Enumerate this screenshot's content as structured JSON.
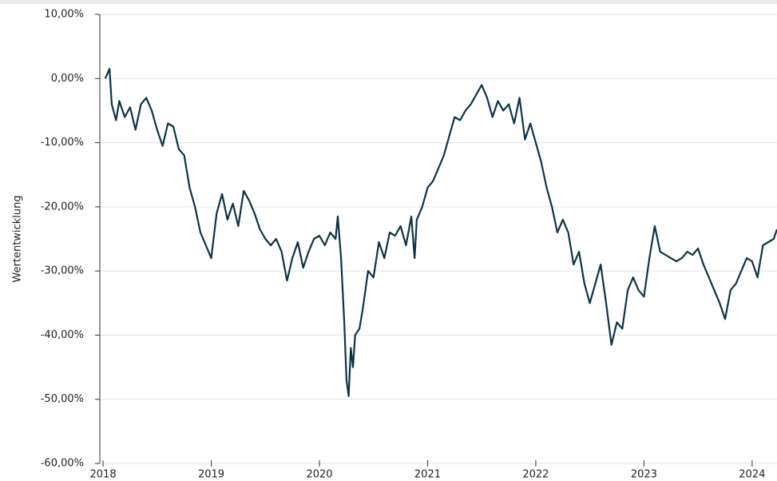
{
  "chart_data": {
    "type": "line",
    "y_label": "Wertentwicklung",
    "xlim": [
      2017.97,
      2024.23
    ],
    "xticks": [
      2018,
      2019,
      2020,
      2021,
      2022,
      2023,
      2024
    ],
    "ylim": [
      -60,
      10
    ],
    "yticks": [
      {
        "value": 10,
        "label": "10,00%"
      },
      {
        "value": 0,
        "label": "0,00%"
      },
      {
        "value": -10,
        "label": "-10,00%"
      },
      {
        "value": -20,
        "label": "-20,00%"
      },
      {
        "value": -30,
        "label": "-30,00%"
      },
      {
        "value": -40,
        "label": "-40,00%"
      },
      {
        "value": -50,
        "label": "-50,00%"
      },
      {
        "value": -60,
        "label": "-60,00%"
      }
    ],
    "grid": true,
    "series": [
      {
        "color": "#0d3344",
        "x": [
          2018.02,
          2018.06,
          2018.08,
          2018.12,
          2018.15,
          2018.2,
          2018.25,
          2018.3,
          2018.35,
          2018.4,
          2018.45,
          2018.5,
          2018.55,
          2018.6,
          2018.65,
          2018.7,
          2018.75,
          2018.8,
          2018.85,
          2018.9,
          2018.95,
          2019.0,
          2019.05,
          2019.1,
          2019.15,
          2019.2,
          2019.25,
          2019.3,
          2019.35,
          2019.4,
          2019.45,
          2019.5,
          2019.55,
          2019.6,
          2019.65,
          2019.7,
          2019.75,
          2019.8,
          2019.85,
          2019.9,
          2019.95,
          2020.0,
          2020.05,
          2020.1,
          2020.15,
          2020.17,
          2020.2,
          2020.23,
          2020.25,
          2020.27,
          2020.29,
          2020.31,
          2020.33,
          2020.37,
          2020.4,
          2020.45,
          2020.5,
          2020.55,
          2020.6,
          2020.65,
          2020.7,
          2020.75,
          2020.8,
          2020.85,
          2020.88,
          2020.9,
          2020.95,
          2021.0,
          2021.05,
          2021.1,
          2021.15,
          2021.2,
          2021.25,
          2021.3,
          2021.35,
          2021.4,
          2021.45,
          2021.5,
          2021.55,
          2021.6,
          2021.65,
          2021.7,
          2021.75,
          2021.8,
          2021.85,
          2021.9,
          2021.95,
          2022.0,
          2022.05,
          2022.1,
          2022.15,
          2022.2,
          2022.25,
          2022.3,
          2022.35,
          2022.4,
          2022.45,
          2022.5,
          2022.55,
          2022.6,
          2022.65,
          2022.7,
          2022.75,
          2022.8,
          2022.85,
          2022.9,
          2022.95,
          2023.0,
          2023.05,
          2023.1,
          2023.15,
          2023.2,
          2023.25,
          2023.3,
          2023.35,
          2023.4,
          2023.45,
          2023.5,
          2023.55,
          2023.6,
          2023.65,
          2023.7,
          2023.75,
          2023.8,
          2023.85,
          2023.9,
          2023.95,
          2024.0,
          2024.05,
          2024.1,
          2024.15,
          2024.2,
          2024.23
        ],
        "values": [
          0,
          1.5,
          -4,
          -6.5,
          -3.5,
          -6,
          -4.5,
          -8,
          -4,
          -3,
          -5,
          -8,
          -10.5,
          -7,
          -7.5,
          -11,
          -12,
          -17,
          -20,
          -24,
          -26,
          -28,
          -21,
          -18,
          -22,
          -19.5,
          -23,
          -17.5,
          -19,
          -21,
          -23.5,
          -25,
          -26,
          -25,
          -27,
          -31.5,
          -28,
          -25.5,
          -29.5,
          -27,
          -25,
          -24.5,
          -26,
          -24,
          -25,
          -21.5,
          -28,
          -38,
          -47,
          -49.5,
          -42,
          -45,
          -40,
          -39,
          -36,
          -30,
          -31,
          -25.5,
          -28,
          -24,
          -24.5,
          -23,
          -26,
          -21.5,
          -28,
          -22,
          -20,
          -17,
          -16,
          -14,
          -12,
          -9,
          -6,
          -6.5,
          -5,
          -4,
          -2.5,
          -1,
          -3,
          -6,
          -3.5,
          -5,
          -4,
          -7,
          -3,
          -9.5,
          -7,
          -10,
          -13,
          -17,
          -20,
          -24,
          -22,
          -24,
          -29,
          -27,
          -32,
          -35,
          -32,
          -29,
          -35,
          -41.5,
          -38,
          -39,
          -33,
          -31,
          -33,
          -34,
          -28,
          -23,
          -27,
          -27.5,
          -28,
          -28.5,
          -28,
          -27,
          -27.5,
          -26.5,
          -29,
          -31,
          -33,
          -35,
          -37.5,
          -33,
          -32,
          -30,
          -28,
          -28.5,
          -31,
          -26,
          -25.5,
          -25,
          -23.5
        ]
      }
    ]
  }
}
